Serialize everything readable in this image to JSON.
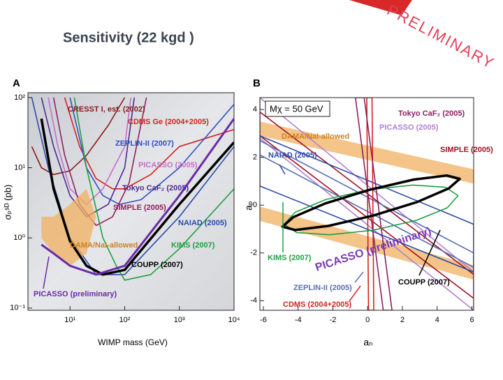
{
  "header": {
    "title": "Sensitivity   (22 kgd )",
    "banner": "PRELIMINARY"
  },
  "chart_data": [
    {
      "type": "line",
      "panel": "A",
      "xlabel": "WIMP mass (GeV)",
      "ylabel": "σₚˢᴰ (pb)",
      "xscale": "log",
      "yscale": "log",
      "xlim": [
        1.7,
        10000
      ],
      "ylim": [
        0.093,
        117
      ],
      "xticks": [
        {
          "value": 10,
          "label": "10¹"
        },
        {
          "value": 100,
          "label": "10²"
        },
        {
          "value": 1000,
          "label": "10³"
        },
        {
          "value": 10000,
          "label": "10⁴"
        }
      ],
      "yticks": [
        {
          "value": 0.1,
          "label": "10⁻¹"
        },
        {
          "value": 1,
          "label": "10⁰"
        },
        {
          "value": 10,
          "label": "10¹"
        },
        {
          "value": 100,
          "label": "10²"
        }
      ],
      "series": [
        {
          "name": "CRESST I, est. (2002)",
          "color": "#8b1a1a",
          "x": [
            2,
            3,
            5,
            10,
            20,
            50,
            100
          ],
          "values": [
            20,
            10,
            8,
            9,
            15,
            40,
            100
          ]
        },
        {
          "name": "CDMS Ge (2004+2005)",
          "color": "#d62020",
          "x": [
            8,
            15,
            30,
            60,
            100,
            300,
            1000,
            10000
          ],
          "values": [
            100,
            20,
            7,
            5,
            5,
            8,
            20,
            35
          ]
        },
        {
          "name": "ZEPLIN-II (2007)",
          "color": "#3050c0",
          "x": [
            10,
            20,
            40,
            80,
            200,
            1000,
            10000
          ],
          "values": [
            100,
            10,
            4,
            3,
            3.5,
            10,
            80
          ]
        },
        {
          "name": "PICASSO (2005)",
          "color": "#c070c8",
          "x": [
            4,
            6,
            10,
            20,
            40,
            100,
            130
          ],
          "values": [
            100,
            20,
            5,
            3,
            5,
            20,
            100
          ]
        },
        {
          "name": "Tokyo CaF₂ (2005)",
          "color": "#4a2a90",
          "x": [
            3,
            5,
            10,
            20,
            50,
            100,
            150
          ],
          "values": [
            100,
            20,
            4,
            2,
            3,
            10,
            100
          ]
        },
        {
          "name": "SIMPLE (2005)",
          "color": "#902060",
          "x": [
            5,
            8,
            15,
            30,
            60,
            120,
            250
          ],
          "values": [
            100,
            15,
            3,
            1.5,
            2,
            6,
            100
          ]
        },
        {
          "name": "NAIAD (2005)",
          "color": "#2a4aa8",
          "x": [
            2,
            4,
            10,
            30,
            100,
            1000,
            10000
          ],
          "values": [
            100,
            10,
            1,
            0.3,
            0.3,
            2,
            20
          ]
        },
        {
          "name": "DAMA/NaI-allowed",
          "color": "#f0b060",
          "fill": true,
          "x": [
            3,
            5,
            10,
            20,
            30,
            20,
            10,
            5,
            3
          ],
          "values": [
            1,
            0.6,
            0.4,
            0.6,
            2,
            5,
            3,
            2,
            2
          ]
        },
        {
          "name": "KIMS (2007)",
          "color": "#20a040",
          "x": [
            12,
            20,
            40,
            70,
            100,
            300,
            1000,
            10000
          ],
          "values": [
            100,
            10,
            1,
            0.4,
            0.25,
            0.3,
            0.7,
            5
          ]
        },
        {
          "name": "COUPP (2007)",
          "color": "#000000",
          "linewidth": 3.5,
          "x": [
            3,
            5,
            10,
            20,
            40,
            100,
            1000,
            10000
          ],
          "values": [
            50,
            5,
            0.9,
            0.4,
            0.3,
            0.35,
            3,
            23
          ]
        },
        {
          "name": "PICASSO (preliminary)",
          "color": "#6a2aa8",
          "linewidth": 3,
          "x": [
            3,
            5,
            10,
            30,
            100,
            1000,
            10000
          ],
          "values": [
            0.8,
            0.6,
            0.4,
            0.3,
            0.4,
            4,
            50
          ]
        }
      ]
    },
    {
      "type": "line",
      "panel": "B",
      "xlabel": "aₙ",
      "ylabel": "aₚ",
      "xlim": [
        -6.2,
        6.1
      ],
      "ylim": [
        -4.4,
        4.5
      ],
      "xticks": [
        -6,
        -4,
        -2,
        0,
        2,
        4,
        6
      ],
      "yticks": [
        -4,
        -2,
        0,
        2,
        4
      ],
      "annotations": [
        "Mχ = 50 GeV",
        "PICASSO (preliminary)"
      ],
      "series": [
        {
          "name": "DAMA/NaI-allowed",
          "color": "#f0b060",
          "fill": true,
          "x": [
            -6.2,
            6.1,
            6.1,
            -6.2
          ],
          "values": [
            3.5,
            1.5,
            0.9,
            2.9
          ]
        },
        {
          "name": null,
          "color": "#f0b060",
          "fill": true,
          "x": [
            -6.2,
            6.1,
            6.1,
            -6.2
          ],
          "values": [
            -0.06,
            -2.52,
            -3.12,
            -0.66
          ]
        },
        {
          "name": "SIMPLE (2005)",
          "color": "#a01020",
          "x": [
            -6.2,
            6.1,
            6.1,
            -6.2
          ],
          "values": [
            3.9,
            -2.9,
            -3.9,
            2.9
          ]
        },
        {
          "name": "PICASSO (2005)",
          "color": "#b080d0",
          "x": [
            -6.2,
            6.1,
            6.1,
            -6.2
          ],
          "values": [
            4.5,
            -2.8,
            -4.4,
            2.8
          ]
        },
        {
          "name": "NAIAD (2005)",
          "color": "#2a4aa8",
          "x": [
            -6.2,
            6.1,
            6.1,
            -6.2
          ],
          "values": [
            2.9,
            -0.8,
            -2.8,
            0.8
          ]
        },
        {
          "name": "ZEPLIN-II (2005)",
          "color": "#5a70b0",
          "x": [
            -6.2,
            6.1,
            6.1,
            -6.2
          ],
          "values": [
            2.7,
            -2.0,
            -2.6,
            2.1
          ]
        },
        {
          "name": "CDMS (2004+2005)",
          "color": "#d62020",
          "x": [
            -0.05,
            0.05,
            0.35,
            0.25
          ],
          "values": [
            4.5,
            -4.4,
            -4.4,
            4.5
          ]
        },
        {
          "name": "Tokyo CaF₂ (2005)",
          "color": "#8a2060",
          "x": [
            -0.7,
            0.9,
            1.4,
            -0.2
          ],
          "values": [
            4.5,
            -4.4,
            -4.4,
            4.5
          ]
        },
        {
          "name": "KIMS (2007)",
          "color": "#20a040",
          "x": [
            5.2,
            4.48,
            2.61,
            0.1,
            -2.39,
            -4.18,
            -4.8,
            -4.08,
            -2.21,
            0.3,
            2.79,
            4.58,
            5.2
          ],
          "values": [
            0.4,
            0.75,
            0.84,
            0.65,
            0.24,
            -0.3,
            -0.8,
            -1.15,
            -1.24,
            -1.05,
            -0.64,
            -0.11,
            0.4
          ]
        },
        {
          "name": "COUPP (2007)",
          "color": "#000000",
          "linewidth": 3.5,
          "x": [
            5.3,
            4.56,
            2.66,
            0.095,
            -2.44,
            -4.27,
            -4.9,
            -4.17,
            -2.26,
            0.305,
            2.84,
            4.67,
            5.3
          ],
          "values": [
            1.1,
            1.24,
            1.07,
            0.64,
            0.07,
            -0.5,
            -0.9,
            -1.04,
            -0.87,
            -0.44,
            0.13,
            0.7,
            1.1
          ]
        }
      ]
    }
  ]
}
